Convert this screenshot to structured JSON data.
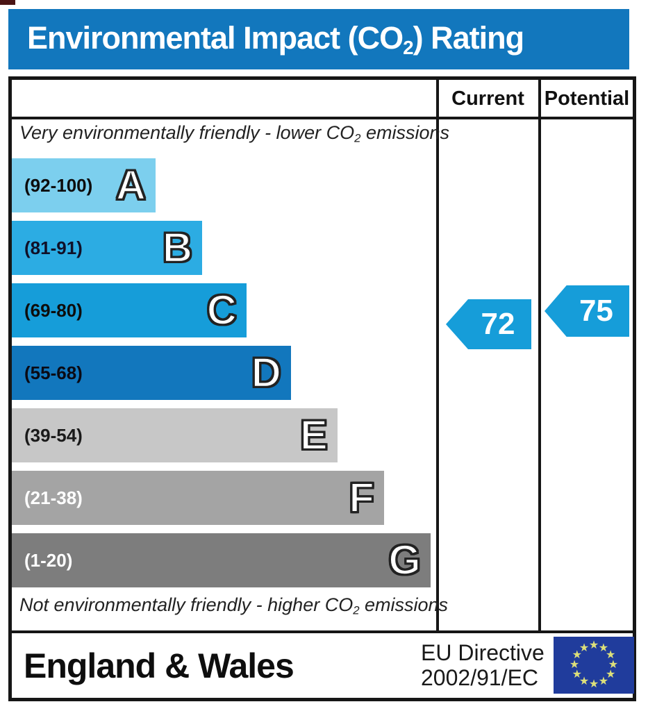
{
  "title_bar": {
    "text_prefix": "Environmental Impact (CO",
    "text_sub": "2",
    "text_suffix": ") Rating",
    "bg": "#1277bd",
    "fg": "#ffffff"
  },
  "table_header": {
    "current": "Current",
    "potential": "Potential"
  },
  "notes": {
    "top": {
      "prefix": "Very environmentally friendly - lower CO",
      "sub": "2",
      "suffix": " emissions"
    },
    "bottom": {
      "prefix": "Not environmentally friendly - higher CO",
      "sub": "2",
      "suffix": " emissions"
    }
  },
  "chart_data": {
    "type": "bar",
    "title": "Environmental Impact (CO2) Rating",
    "bands": [
      {
        "letter": "A",
        "range": "(92-100)",
        "min": 92,
        "max": 100,
        "color": "#7ccfee",
        "label_color": "#0d0d0d",
        "width_pct": 34
      },
      {
        "letter": "B",
        "range": "(81-91)",
        "min": 81,
        "max": 91,
        "color": "#2cace3",
        "label_color": "#101028",
        "width_pct": 45
      },
      {
        "letter": "C",
        "range": "(69-80)",
        "min": 69,
        "max": 80,
        "color": "#169dd9",
        "label_color": "#0d0d0d",
        "width_pct": 55.5
      },
      {
        "letter": "D",
        "range": "(55-68)",
        "min": 55,
        "max": 68,
        "color": "#1277bd",
        "label_color": "#0a0a14",
        "width_pct": 66
      },
      {
        "letter": "E",
        "range": "(39-54)",
        "min": 39,
        "max": 54,
        "color": "#c7c7c7",
        "label_color": "#1a1a1a",
        "width_pct": 77
      },
      {
        "letter": "F",
        "range": "(21-38)",
        "min": 21,
        "max": 38,
        "color": "#a4a4a4",
        "label_color": "#ffffff",
        "width_pct": 88
      },
      {
        "letter": "G",
        "range": "(1-20)",
        "min": 1,
        "max": 20,
        "color": "#7d7d7d",
        "label_color": "#ffffff",
        "width_pct": 99
      }
    ],
    "current": {
      "value": "72",
      "band": "C",
      "arrow_color": "#169dd9"
    },
    "potential": {
      "value": "75",
      "band": "C",
      "arrow_color": "#169dd9"
    }
  },
  "footer": {
    "region": "England & Wales",
    "directive_line1": "EU Directive",
    "directive_line2": "2002/91/EC",
    "eu_flag": {
      "bg": "#203c9c",
      "star_color": "#dde07a",
      "star_count": 12
    }
  }
}
